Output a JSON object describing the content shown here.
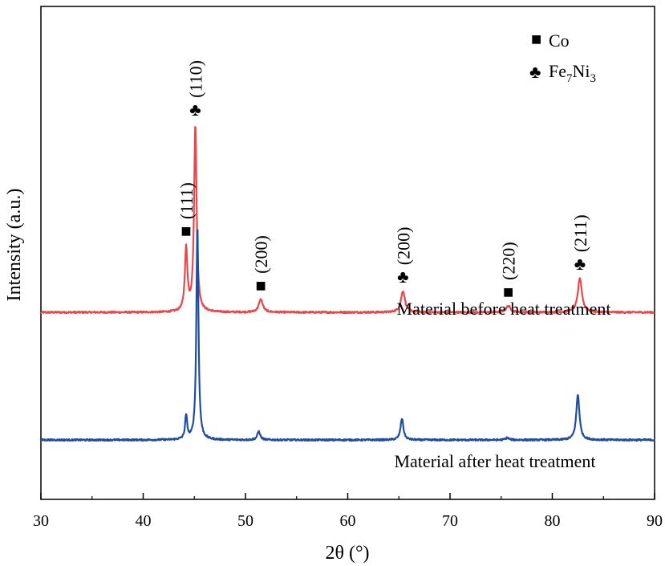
{
  "chart_data": {
    "type": "line",
    "xlabel": "2θ (°)",
    "ylabel": "Intensity (a.u.)",
    "xlim": [
      30,
      90
    ],
    "xticks": [
      "30",
      "40",
      "50",
      "60",
      "70",
      "80",
      "90"
    ],
    "grid": false,
    "legend": {
      "placement": "top-right",
      "entries": [
        {
          "marker": "■",
          "label": "Co",
          "sub": ""
        },
        {
          "marker": "♣",
          "label": "Fe",
          "sub": "7",
          "label2": "Ni",
          "sub2": "3"
        }
      ]
    },
    "series": [
      {
        "color": "#e8474b",
        "baseline": 0.593,
        "noise": 0.004,
        "series_label": "Material before heat treatment",
        "peaks": [
          {
            "x": 44.2,
            "height": 0.29,
            "width": 0.22
          },
          {
            "x": 45.1,
            "height": 0.87,
            "width": 0.22
          },
          {
            "x": 51.5,
            "height": 0.06,
            "width": 0.35
          },
          {
            "x": 65.4,
            "height": 0.1,
            "width": 0.35
          },
          {
            "x": 75.7,
            "height": 0.03,
            "width": 0.4
          },
          {
            "x": 82.7,
            "height": 0.16,
            "width": 0.35
          }
        ]
      },
      {
        "color": "#1f4ea1",
        "baseline": 0.0,
        "noise": 0.004,
        "series_label": "Material after heat treatment",
        "peaks": [
          {
            "x": 44.2,
            "height": 0.11,
            "width": 0.18
          },
          {
            "x": 45.3,
            "height": 1.0,
            "width": 0.18
          },
          {
            "x": 51.3,
            "height": 0.04,
            "width": 0.25
          },
          {
            "x": 65.3,
            "height": 0.1,
            "width": 0.25
          },
          {
            "x": 75.6,
            "height": 0.01,
            "width": 0.3
          },
          {
            "x": 82.5,
            "height": 0.21,
            "width": 0.28
          }
        ]
      }
    ],
    "peak_annotations": [
      {
        "x": 44.2,
        "marker": "■",
        "hkl": "(111)"
      },
      {
        "x": 45.1,
        "marker": "♣",
        "hkl": "(110)"
      },
      {
        "x": 51.5,
        "marker": "■",
        "hkl": "(200)"
      },
      {
        "x": 65.4,
        "marker": "♣",
        "hkl": "(200)"
      },
      {
        "x": 75.7,
        "marker": "■",
        "hkl": "(220)"
      },
      {
        "x": 82.7,
        "marker": "♣",
        "hkl": "(211)"
      }
    ]
  }
}
